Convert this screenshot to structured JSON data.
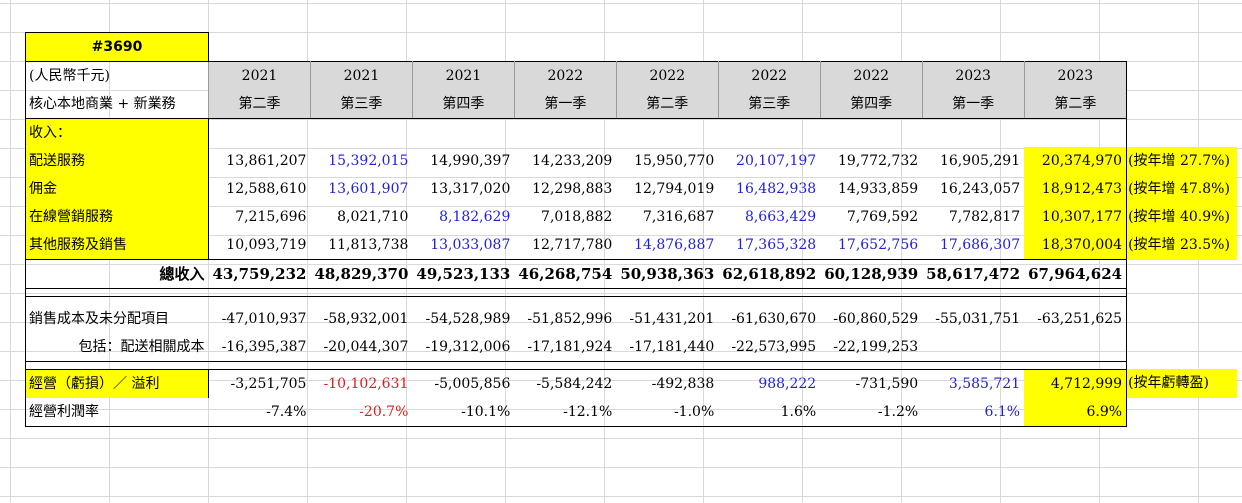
{
  "ticker": "#3690",
  "unit_label": "(人民幣千元)",
  "segment_label": "核心本地商業 + 新業務",
  "years": [
    "2021",
    "2021",
    "2021",
    "2022",
    "2022",
    "2022",
    "2022",
    "2023",
    "2023"
  ],
  "quarters": [
    "第二季",
    "第三季",
    "第四季",
    "第一季",
    "第二季",
    "第三季",
    "第四季",
    "第一季",
    "第二季"
  ],
  "revenue_header": "收入：",
  "revenue_rows": [
    {
      "label": "配送服務",
      "values": [
        "13,861,207",
        "15,392,015",
        "14,990,397",
        "14,233,209",
        "15,950,770",
        "20,107,197",
        "19,772,732",
        "16,905,291",
        "20,374,970"
      ],
      "note": "(按年增 27.7%)"
    },
    {
      "label": "佣金",
      "values": [
        "12,588,610",
        "13,601,907",
        "13,317,020",
        "12,298,883",
        "12,794,019",
        "16,482,938",
        "14,933,859",
        "16,243,057",
        "18,912,473"
      ],
      "note": "(按年增 47.8%)"
    },
    {
      "label": "在線營銷服務",
      "values": [
        "7,215,696",
        "8,021,710",
        "8,182,629",
        "7,018,882",
        "7,316,687",
        "8,663,429",
        "7,769,592",
        "7,782,817",
        "10,307,177"
      ],
      "note": "(按年增 40.9%)"
    },
    {
      "label": "其他服務及銷售",
      "values": [
        "10,093,719",
        "11,813,738",
        "13,033,087",
        "12,717,780",
        "14,876,887",
        "17,365,328",
        "17,652,756",
        "17,686,307",
        "18,370,004"
      ],
      "note": "(按年增 23.5%)"
    }
  ],
  "total": {
    "label": "總收入",
    "values": [
      "43,759,232",
      "48,829,370",
      "49,523,133",
      "46,268,754",
      "50,938,363",
      "62,618,892",
      "60,128,939",
      "58,617,472",
      "67,964,624"
    ]
  },
  "cost_rows": [
    {
      "label": "銷售成本及未分配項目",
      "values": [
        "-47,010,937",
        "-58,932,001",
        "-54,528,989",
        "-51,852,996",
        "-51,431,201",
        "-61,630,670",
        "-60,860,529",
        "-55,031,751",
        "-63,251,625"
      ]
    },
    {
      "label": "包括：配送相關成本",
      "values": [
        "-16,395,387",
        "-20,044,307",
        "-19,312,006",
        "-17,181,924",
        "-17,181,440",
        "-22,573,995",
        "-22,199,253",
        "",
        ""
      ]
    }
  ],
  "operating": {
    "label": "經營（虧損）／ 溢利",
    "values": [
      "-3,251,705",
      "-10,102,631",
      "-5,005,856",
      "-5,584,242",
      "-492,838",
      "988,222",
      "-731,590",
      "3,585,721",
      "4,712,999"
    ],
    "note": "(按年虧轉盈)"
  },
  "margin": {
    "label": "經營利潤率",
    "values": [
      "-7.4%",
      "-20.7%",
      "-10.1%",
      "-12.1%",
      "-1.0%",
      "1.6%",
      "-1.2%",
      "6.1%",
      "6.9%"
    ]
  },
  "colors": {
    "highlight": "#ffff00",
    "header_bg": "#d9d9d9",
    "blue": "#1f1fd8",
    "red": "#d81f1f"
  }
}
